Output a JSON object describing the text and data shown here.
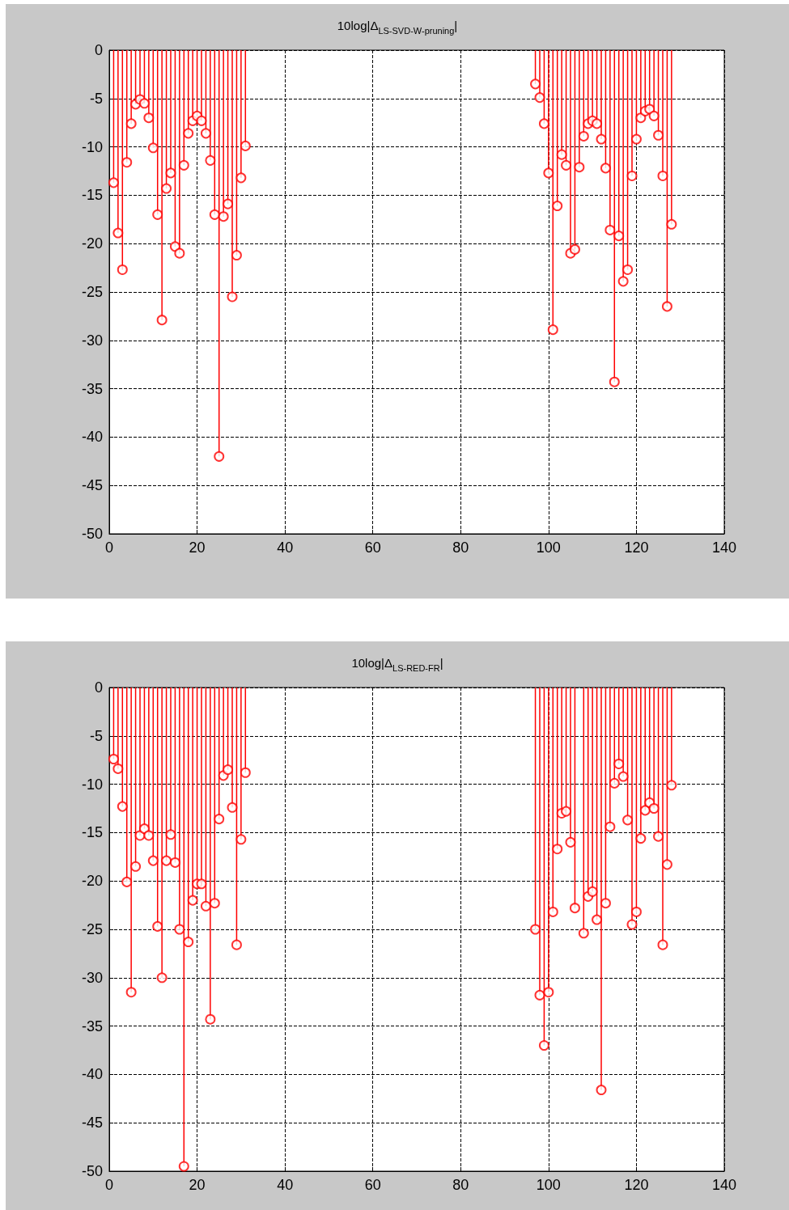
{
  "chart_data": [
    {
      "type": "lollipop",
      "title": "10log|Δ$_{LS-SVD-W-pruning}$|",
      "x": [
        1,
        2,
        3,
        4,
        5,
        6,
        7,
        8,
        9,
        10,
        11,
        12,
        13,
        14,
        15,
        16,
        17,
        18,
        19,
        20,
        21,
        22,
        23,
        24,
        25,
        26,
        27,
        28,
        29,
        30,
        31,
        97,
        98,
        99,
        100,
        101,
        102,
        103,
        104,
        105,
        106,
        107,
        108,
        109,
        110,
        111,
        112,
        113,
        114,
        115,
        116,
        117,
        118,
        119,
        120,
        121,
        122,
        123,
        124,
        125,
        126,
        127,
        128
      ],
      "series": [
        {
          "color": "#ff0000",
          "values": [
            -13.7,
            -18.9,
            -22.7,
            -11.6,
            -7.6,
            -5.6,
            -5.1,
            -5.5,
            -7.0,
            -10.1,
            -17.0,
            -27.9,
            -14.3,
            -12.7,
            -20.3,
            -21.0,
            -11.9,
            -8.6,
            -7.3,
            -6.8,
            -7.3,
            -8.6,
            -11.4,
            -17.0,
            -42.0,
            -17.2,
            -15.9,
            -25.5,
            -21.2,
            -13.2,
            -9.9,
            -3.5,
            -4.9,
            -7.6,
            -12.7,
            -28.9,
            -16.1,
            -10.8,
            -11.9,
            -21.0,
            -20.6,
            -12.1,
            -8.9,
            -7.6,
            -7.3,
            -7.6,
            -9.2,
            -12.2,
            -18.6,
            -34.3,
            -19.2,
            -23.9,
            -22.7,
            -13.0,
            -9.2,
            -7.0,
            -6.3,
            -6.1,
            -6.8,
            -8.8,
            -13.0,
            -26.5,
            -18.0
          ]
        }
      ],
      "xlim": [
        0,
        140
      ],
      "xticks": [
        0,
        20,
        40,
        60,
        80,
        100,
        120,
        140
      ],
      "ylim": [
        -50,
        0
      ],
      "yticks": [
        -50,
        -45,
        -40,
        -35,
        -30,
        -25,
        -20,
        -15,
        -10,
        -5,
        0
      ],
      "grid": true,
      "marker": "circle"
    },
    {
      "type": "lollipop",
      "title": "10log|Δ$_{LS-RED-FR}$|",
      "x": [
        1,
        2,
        3,
        4,
        5,
        6,
        7,
        8,
        9,
        10,
        11,
        12,
        13,
        14,
        15,
        16,
        17,
        18,
        19,
        20,
        21,
        22,
        23,
        24,
        25,
        26,
        27,
        28,
        29,
        30,
        31,
        97,
        98,
        99,
        100,
        101,
        102,
        103,
        104,
        105,
        106,
        107,
        108,
        109,
        110,
        111,
        112,
        113,
        114,
        115,
        116,
        117,
        118,
        119,
        120,
        121,
        122,
        123,
        124,
        125,
        126,
        127,
        128
      ],
      "series": [
        {
          "color": "#ff0000",
          "values": [
            -7.4,
            -8.4,
            -12.3,
            -20.1,
            -31.5,
            -18.5,
            -15.3,
            -14.6,
            -15.3,
            -17.9,
            -24.7,
            -30.0,
            -17.9,
            -15.2,
            -18.1,
            -25.0,
            -49.5,
            -26.3,
            -22.0,
            -20.3,
            -20.3,
            -22.6,
            -34.3,
            -22.3,
            -13.6,
            -9.1,
            -8.5,
            -12.4,
            -26.6,
            -15.7,
            -8.8,
            -25.0,
            -31.8,
            -37.0,
            -31.5,
            -23.2,
            -16.7,
            -13.0,
            -12.8,
            -16.0,
            -22.8,
            null,
            -25.4,
            -21.6,
            -21.1,
            -24.0,
            -41.6,
            -22.3,
            -14.4,
            -9.9,
            -7.9,
            -9.2,
            -13.7,
            -24.5,
            -23.2,
            -15.6,
            -12.7,
            -11.9,
            -12.5,
            -15.4,
            -26.6,
            -18.3,
            -10.1
          ]
        }
      ],
      "xlim": [
        0,
        140
      ],
      "xticks": [
        0,
        20,
        40,
        60,
        80,
        100,
        120,
        140
      ],
      "ylim": [
        -50,
        0
      ],
      "yticks": [
        -50,
        -45,
        -40,
        -35,
        -30,
        -25,
        -20,
        -15,
        -10,
        -5,
        0
      ],
      "grid": true,
      "marker": "circle"
    }
  ]
}
